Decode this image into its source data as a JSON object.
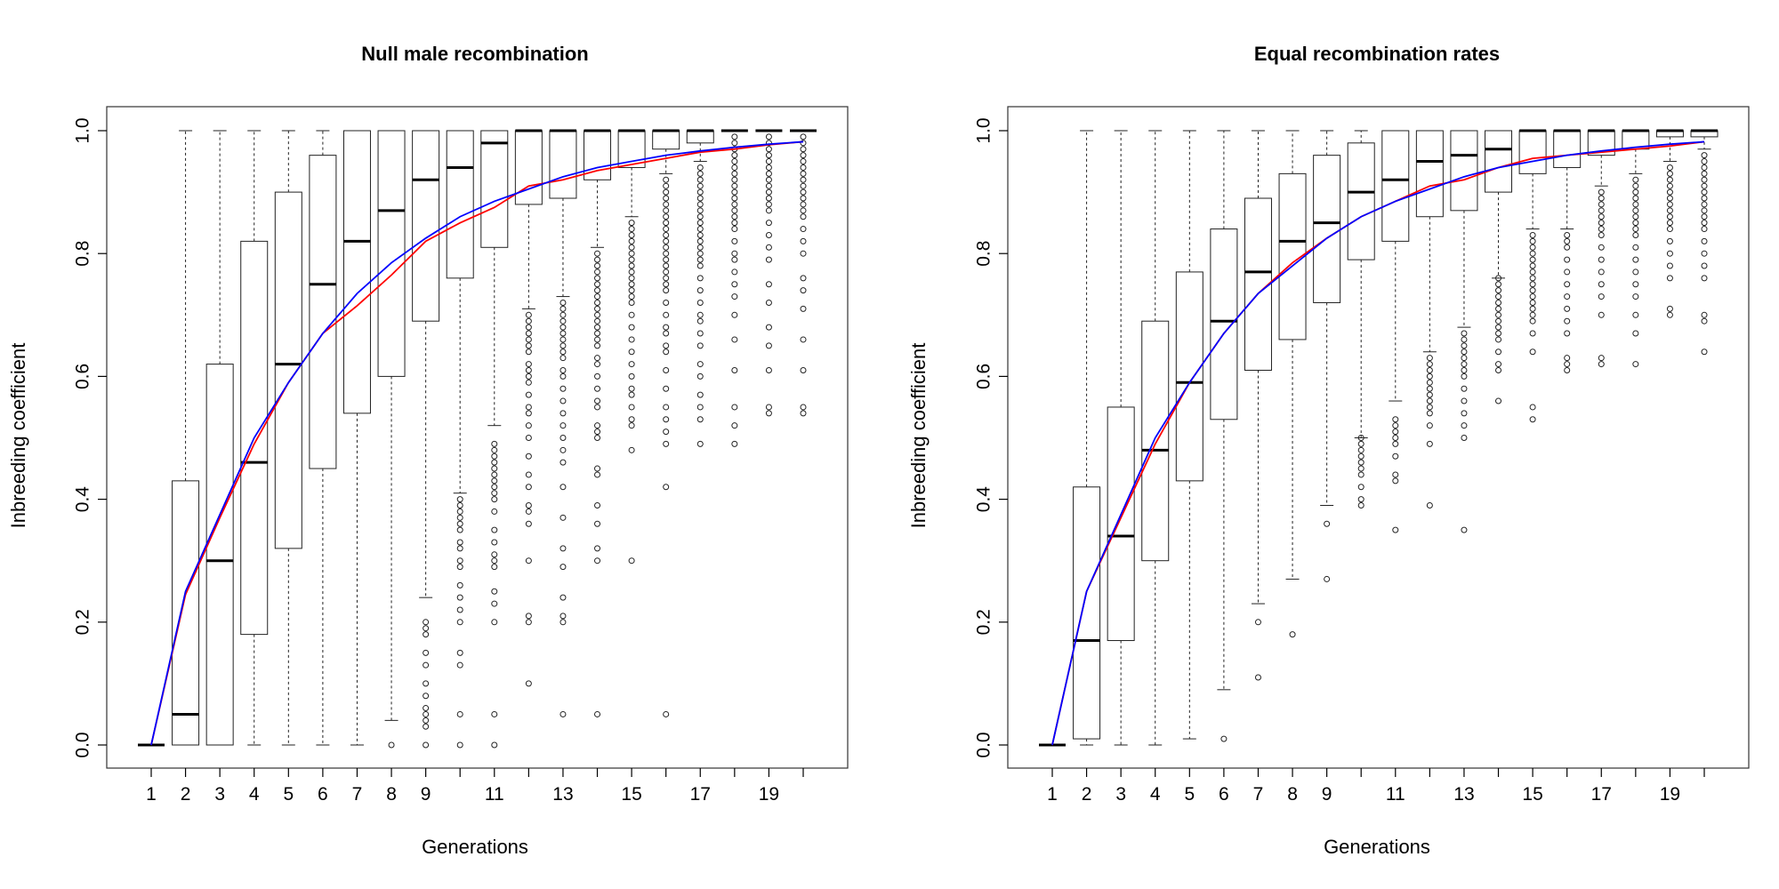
{
  "chart_data": [
    {
      "type": "box",
      "title": "Null male recombination",
      "xlabel": "Generations",
      "ylabel": "Inbreeding coefficient",
      "ylim": [
        0,
        1
      ],
      "y_ticks": [
        "0.0",
        "0.2",
        "0.4",
        "0.6",
        "0.8",
        "1.0"
      ],
      "x_ticks": [
        "1",
        "2",
        "3",
        "4",
        "5",
        "6",
        "7",
        "8",
        "9",
        "11",
        "13",
        "15",
        "17",
        "19"
      ],
      "generations": [
        1,
        2,
        3,
        4,
        5,
        6,
        7,
        8,
        9,
        10,
        11,
        12,
        13,
        14,
        15,
        16,
        17,
        18,
        19,
        20
      ],
      "boxes": [
        {
          "min": 0.0,
          "q1": 0.0,
          "median": 0.0,
          "q3": 0.0,
          "max": 0.0,
          "outliers": []
        },
        {
          "min": 0.0,
          "q1": 0.0,
          "median": 0.05,
          "q3": 0.43,
          "max": 1.0,
          "outliers": []
        },
        {
          "min": 0.0,
          "q1": 0.0,
          "median": 0.3,
          "q3": 0.62,
          "max": 1.0,
          "outliers": []
        },
        {
          "min": 0.0,
          "q1": 0.18,
          "median": 0.46,
          "q3": 0.82,
          "max": 1.0,
          "outliers": []
        },
        {
          "min": 0.0,
          "q1": 0.32,
          "median": 0.62,
          "q3": 0.9,
          "max": 1.0,
          "outliers": []
        },
        {
          "min": 0.0,
          "q1": 0.45,
          "median": 0.75,
          "q3": 0.96,
          "max": 1.0,
          "outliers": []
        },
        {
          "min": 0.0,
          "q1": 0.54,
          "median": 0.82,
          "q3": 1.0,
          "max": 1.0,
          "outliers": []
        },
        {
          "min": 0.04,
          "q1": 0.6,
          "median": 0.87,
          "q3": 1.0,
          "max": 1.0,
          "outliers": [
            0.0
          ]
        },
        {
          "min": 0.24,
          "q1": 0.69,
          "median": 0.92,
          "q3": 1.0,
          "max": 1.0,
          "outliers": [
            0.0,
            0.03,
            0.04,
            0.05,
            0.06,
            0.08,
            0.1,
            0.13,
            0.15,
            0.18,
            0.19,
            0.2
          ]
        },
        {
          "min": 0.41,
          "q1": 0.76,
          "median": 0.94,
          "q3": 1.0,
          "max": 1.0,
          "outliers": [
            0.0,
            0.05,
            0.13,
            0.15,
            0.2,
            0.22,
            0.24,
            0.26,
            0.29,
            0.3,
            0.32,
            0.33,
            0.35,
            0.36,
            0.37,
            0.38,
            0.39,
            0.4
          ]
        },
        {
          "min": 0.52,
          "q1": 0.81,
          "median": 0.98,
          "q3": 1.0,
          "max": 1.0,
          "outliers": [
            0.0,
            0.05,
            0.2,
            0.23,
            0.25,
            0.29,
            0.3,
            0.31,
            0.33,
            0.35,
            0.38,
            0.4,
            0.41,
            0.42,
            0.43,
            0.44,
            0.45,
            0.46,
            0.47,
            0.48,
            0.49
          ]
        },
        {
          "min": 0.71,
          "q1": 0.88,
          "median": 1.0,
          "q3": 1.0,
          "max": 1.0,
          "outliers": [
            0.1,
            0.2,
            0.21,
            0.3,
            0.36,
            0.38,
            0.39,
            0.42,
            0.44,
            0.47,
            0.5,
            0.52,
            0.54,
            0.55,
            0.57,
            0.59,
            0.6,
            0.61,
            0.62,
            0.64,
            0.65,
            0.66,
            0.67,
            0.68,
            0.69,
            0.7
          ]
        },
        {
          "min": 0.73,
          "q1": 0.89,
          "median": 1.0,
          "q3": 1.0,
          "max": 1.0,
          "outliers": [
            0.05,
            0.2,
            0.21,
            0.24,
            0.29,
            0.32,
            0.37,
            0.42,
            0.46,
            0.48,
            0.5,
            0.52,
            0.54,
            0.56,
            0.58,
            0.6,
            0.61,
            0.63,
            0.64,
            0.65,
            0.66,
            0.67,
            0.68,
            0.69,
            0.7,
            0.71,
            0.72
          ]
        },
        {
          "min": 0.81,
          "q1": 0.92,
          "median": 1.0,
          "q3": 1.0,
          "max": 1.0,
          "outliers": [
            0.05,
            0.3,
            0.32,
            0.36,
            0.39,
            0.44,
            0.45,
            0.5,
            0.51,
            0.52,
            0.55,
            0.56,
            0.58,
            0.6,
            0.62,
            0.63,
            0.65,
            0.66,
            0.67,
            0.68,
            0.69,
            0.7,
            0.71,
            0.72,
            0.73,
            0.74,
            0.75,
            0.76,
            0.77,
            0.78,
            0.79,
            0.8
          ]
        },
        {
          "min": 0.86,
          "q1": 0.94,
          "median": 1.0,
          "q3": 1.0,
          "max": 1.0,
          "outliers": [
            0.3,
            0.48,
            0.52,
            0.53,
            0.55,
            0.57,
            0.58,
            0.6,
            0.62,
            0.64,
            0.66,
            0.68,
            0.7,
            0.72,
            0.73,
            0.74,
            0.75,
            0.76,
            0.77,
            0.78,
            0.79,
            0.8,
            0.81,
            0.82,
            0.83,
            0.84,
            0.85
          ]
        },
        {
          "min": 0.93,
          "q1": 0.97,
          "median": 1.0,
          "q3": 1.0,
          "max": 1.0,
          "outliers": [
            0.05,
            0.42,
            0.49,
            0.51,
            0.53,
            0.55,
            0.58,
            0.61,
            0.64,
            0.65,
            0.67,
            0.68,
            0.7,
            0.72,
            0.74,
            0.75,
            0.76,
            0.77,
            0.78,
            0.79,
            0.8,
            0.81,
            0.82,
            0.83,
            0.84,
            0.85,
            0.86,
            0.87,
            0.88,
            0.89,
            0.9,
            0.91,
            0.92
          ]
        },
        {
          "min": 0.95,
          "q1": 0.98,
          "median": 1.0,
          "q3": 1.0,
          "max": 1.0,
          "outliers": [
            0.49,
            0.53,
            0.55,
            0.57,
            0.6,
            0.62,
            0.65,
            0.67,
            0.69,
            0.7,
            0.72,
            0.74,
            0.76,
            0.78,
            0.79,
            0.8,
            0.81,
            0.82,
            0.83,
            0.84,
            0.85,
            0.86,
            0.87,
            0.88,
            0.89,
            0.9,
            0.91,
            0.92,
            0.93,
            0.94
          ]
        },
        {
          "min": 1.0,
          "q1": 1.0,
          "median": 1.0,
          "q3": 1.0,
          "max": 1.0,
          "outliers": [
            0.49,
            0.52,
            0.55,
            0.61,
            0.66,
            0.7,
            0.73,
            0.75,
            0.77,
            0.79,
            0.8,
            0.82,
            0.84,
            0.85,
            0.86,
            0.87,
            0.88,
            0.89,
            0.9,
            0.91,
            0.92,
            0.93,
            0.94,
            0.95,
            0.96,
            0.97,
            0.98,
            0.99
          ]
        },
        {
          "min": 1.0,
          "q1": 1.0,
          "median": 1.0,
          "q3": 1.0,
          "max": 1.0,
          "outliers": [
            0.54,
            0.55,
            0.61,
            0.65,
            0.68,
            0.72,
            0.75,
            0.79,
            0.81,
            0.83,
            0.85,
            0.87,
            0.88,
            0.89,
            0.9,
            0.91,
            0.92,
            0.93,
            0.94,
            0.95,
            0.96,
            0.97,
            0.98,
            0.99
          ]
        },
        {
          "min": 1.0,
          "q1": 1.0,
          "median": 1.0,
          "q3": 1.0,
          "max": 1.0,
          "outliers": [
            0.54,
            0.55,
            0.61,
            0.66,
            0.71,
            0.74,
            0.76,
            0.8,
            0.82,
            0.84,
            0.86,
            0.87,
            0.88,
            0.89,
            0.9,
            0.91,
            0.92,
            0.93,
            0.94,
            0.95,
            0.96,
            0.97,
            0.98,
            0.99
          ]
        }
      ],
      "series": [
        {
          "color": "#ff0000",
          "values": [
            0.0,
            0.245,
            0.37,
            0.49,
            0.59,
            0.67,
            0.715,
            0.765,
            0.82,
            0.85,
            0.875,
            0.91,
            0.92,
            0.935,
            0.945,
            0.955,
            0.965,
            0.97,
            0.977,
            0.982
          ]
        },
        {
          "color": "#0000ff",
          "values": [
            0.0,
            0.25,
            0.375,
            0.5,
            0.59,
            0.67,
            0.735,
            0.785,
            0.825,
            0.86,
            0.885,
            0.905,
            0.925,
            0.94,
            0.95,
            0.96,
            0.967,
            0.973,
            0.978,
            0.982
          ]
        }
      ]
    },
    {
      "type": "box",
      "title": "Equal recombination rates",
      "xlabel": "Generations",
      "ylabel": "Inbreeding coefficient",
      "ylim": [
        0,
        1
      ],
      "y_ticks": [
        "0.0",
        "0.2",
        "0.4",
        "0.6",
        "0.8",
        "1.0"
      ],
      "x_ticks": [
        "1",
        "2",
        "3",
        "4",
        "5",
        "6",
        "7",
        "8",
        "9",
        "11",
        "13",
        "15",
        "17",
        "19"
      ],
      "generations": [
        1,
        2,
        3,
        4,
        5,
        6,
        7,
        8,
        9,
        10,
        11,
        12,
        13,
        14,
        15,
        16,
        17,
        18,
        19,
        20
      ],
      "boxes": [
        {
          "min": 0.0,
          "q1": 0.0,
          "median": 0.0,
          "q3": 0.0,
          "max": 0.0,
          "outliers": []
        },
        {
          "min": 0.0,
          "q1": 0.01,
          "median": 0.17,
          "q3": 0.42,
          "max": 1.0,
          "outliers": []
        },
        {
          "min": 0.0,
          "q1": 0.17,
          "median": 0.34,
          "q3": 0.55,
          "max": 1.0,
          "outliers": []
        },
        {
          "min": 0.0,
          "q1": 0.3,
          "median": 0.48,
          "q3": 0.69,
          "max": 1.0,
          "outliers": []
        },
        {
          "min": 0.01,
          "q1": 0.43,
          "median": 0.59,
          "q3": 0.77,
          "max": 1.0,
          "outliers": []
        },
        {
          "min": 0.09,
          "q1": 0.53,
          "median": 0.69,
          "q3": 0.84,
          "max": 1.0,
          "outliers": [
            0.01
          ]
        },
        {
          "min": 0.23,
          "q1": 0.61,
          "median": 0.77,
          "q3": 0.89,
          "max": 1.0,
          "outliers": [
            0.11,
            0.2
          ]
        },
        {
          "min": 0.27,
          "q1": 0.66,
          "median": 0.82,
          "q3": 0.93,
          "max": 1.0,
          "outliers": [
            0.18
          ]
        },
        {
          "min": 0.39,
          "q1": 0.72,
          "median": 0.85,
          "q3": 0.96,
          "max": 1.0,
          "outliers": [
            0.27,
            0.36
          ]
        },
        {
          "min": 0.5,
          "q1": 0.79,
          "median": 0.9,
          "q3": 0.98,
          "max": 1.0,
          "outliers": [
            0.39,
            0.4,
            0.42,
            0.44,
            0.45,
            0.46,
            0.47,
            0.48,
            0.49,
            0.5
          ]
        },
        {
          "min": 0.56,
          "q1": 0.82,
          "median": 0.92,
          "q3": 1.0,
          "max": 1.0,
          "outliers": [
            0.35,
            0.43,
            0.44,
            0.47,
            0.49,
            0.5,
            0.51,
            0.52,
            0.53
          ]
        },
        {
          "min": 0.64,
          "q1": 0.86,
          "median": 0.95,
          "q3": 1.0,
          "max": 1.0,
          "outliers": [
            0.39,
            0.49,
            0.52,
            0.54,
            0.55,
            0.56,
            0.57,
            0.58,
            0.59,
            0.6,
            0.61,
            0.62,
            0.63
          ]
        },
        {
          "min": 0.68,
          "q1": 0.87,
          "median": 0.96,
          "q3": 1.0,
          "max": 1.0,
          "outliers": [
            0.35,
            0.5,
            0.52,
            0.54,
            0.56,
            0.58,
            0.6,
            0.61,
            0.62,
            0.63,
            0.64,
            0.65,
            0.66,
            0.67
          ]
        },
        {
          "min": 0.76,
          "q1": 0.9,
          "median": 0.97,
          "q3": 1.0,
          "max": 1.0,
          "outliers": [
            0.56,
            0.61,
            0.62,
            0.64,
            0.66,
            0.67,
            0.68,
            0.69,
            0.7,
            0.71,
            0.72,
            0.73,
            0.74,
            0.75,
            0.76
          ]
        },
        {
          "min": 0.84,
          "q1": 0.93,
          "median": 1.0,
          "q3": 1.0,
          "max": 1.0,
          "outliers": [
            0.53,
            0.55,
            0.64,
            0.67,
            0.69,
            0.7,
            0.71,
            0.72,
            0.73,
            0.74,
            0.75,
            0.76,
            0.77,
            0.78,
            0.79,
            0.8,
            0.81,
            0.82,
            0.83
          ]
        },
        {
          "min": 0.84,
          "q1": 0.94,
          "median": 1.0,
          "q3": 1.0,
          "max": 1.0,
          "outliers": [
            0.61,
            0.62,
            0.63,
            0.67,
            0.69,
            0.71,
            0.73,
            0.75,
            0.77,
            0.79,
            0.81,
            0.82,
            0.83
          ]
        },
        {
          "min": 0.91,
          "q1": 0.96,
          "median": 1.0,
          "q3": 1.0,
          "max": 1.0,
          "outliers": [
            0.62,
            0.63,
            0.7,
            0.73,
            0.75,
            0.77,
            0.79,
            0.81,
            0.83,
            0.84,
            0.85,
            0.86,
            0.87,
            0.88,
            0.89,
            0.9
          ]
        },
        {
          "min": 0.93,
          "q1": 0.97,
          "median": 1.0,
          "q3": 1.0,
          "max": 1.0,
          "outliers": [
            0.62,
            0.67,
            0.7,
            0.73,
            0.75,
            0.77,
            0.79,
            0.81,
            0.83,
            0.84,
            0.85,
            0.86,
            0.87,
            0.88,
            0.89,
            0.9,
            0.91,
            0.92
          ]
        },
        {
          "min": 0.95,
          "q1": 0.99,
          "median": 1.0,
          "q3": 1.0,
          "max": 1.0,
          "outliers": [
            0.7,
            0.71,
            0.76,
            0.78,
            0.8,
            0.82,
            0.84,
            0.85,
            0.86,
            0.87,
            0.88,
            0.89,
            0.9,
            0.91,
            0.92,
            0.93,
            0.94
          ]
        },
        {
          "min": 0.97,
          "q1": 0.99,
          "median": 1.0,
          "q3": 1.0,
          "max": 1.0,
          "outliers": [
            0.64,
            0.69,
            0.7,
            0.76,
            0.78,
            0.8,
            0.82,
            0.84,
            0.85,
            0.86,
            0.87,
            0.88,
            0.89,
            0.9,
            0.91,
            0.92,
            0.93,
            0.94,
            0.95,
            0.96
          ]
        }
      ],
      "series": [
        {
          "color": "#ff0000",
          "values": [
            0.0,
            0.25,
            0.37,
            0.49,
            0.59,
            0.67,
            0.735,
            0.785,
            0.825,
            0.86,
            0.885,
            0.91,
            0.92,
            0.94,
            0.955,
            0.96,
            0.965,
            0.97,
            0.975,
            0.982
          ]
        },
        {
          "color": "#0000ff",
          "values": [
            0.0,
            0.25,
            0.375,
            0.5,
            0.59,
            0.67,
            0.735,
            0.78,
            0.825,
            0.86,
            0.885,
            0.905,
            0.925,
            0.94,
            0.95,
            0.96,
            0.967,
            0.973,
            0.978,
            0.982
          ]
        }
      ]
    }
  ]
}
